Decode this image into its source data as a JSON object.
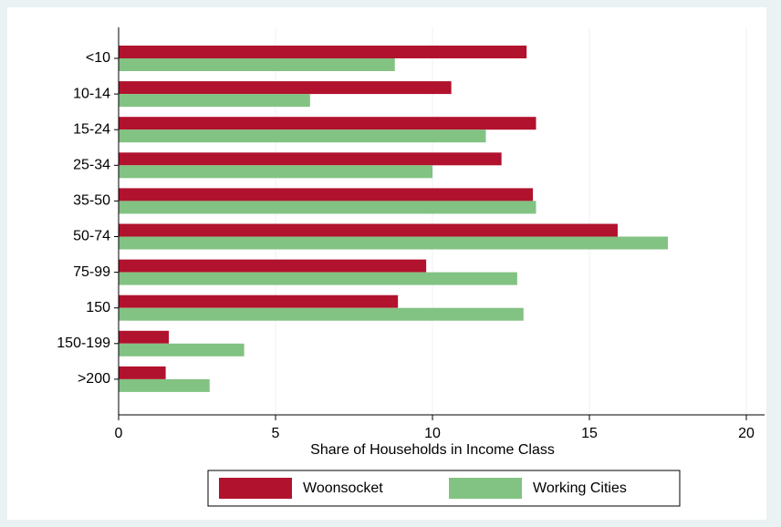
{
  "chart_data": {
    "type": "hbar",
    "xlabel": "Share of Households in Income Class",
    "categories": [
      "<10",
      "10-14",
      "15-24",
      "25-34",
      "35-50",
      "50-74",
      "75-99",
      "150",
      "150-199",
      ">200"
    ],
    "series": [
      {
        "name": "Woonsocket",
        "color": "#b1122e",
        "values": [
          13.0,
          10.6,
          13.3,
          12.2,
          13.2,
          15.9,
          9.8,
          8.9,
          1.6,
          1.5
        ]
      },
      {
        "name": "Working Cities",
        "color": "#82c282",
        "values": [
          8.8,
          6.1,
          11.7,
          10.0,
          13.3,
          17.5,
          12.7,
          12.9,
          4.0,
          2.9
        ]
      }
    ],
    "xlim": [
      0,
      20
    ],
    "xticks": [
      0,
      5,
      10,
      15,
      20
    ],
    "grid": true
  }
}
